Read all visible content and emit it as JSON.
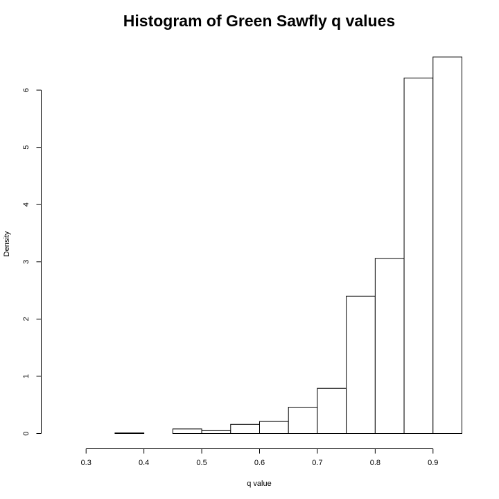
{
  "chart_data": {
    "type": "bar",
    "title": "Histogram of Green Sawfly q values",
    "xlabel": "q value",
    "ylabel": "Density",
    "xlim": [
      0.25,
      0.95
    ],
    "ylim": [
      0,
      6.6
    ],
    "x_ticks": [
      "0.3",
      "0.4",
      "0.5",
      "0.6",
      "0.7",
      "0.8",
      "0.9"
    ],
    "y_ticks": [
      "0",
      "1",
      "2",
      "3",
      "4",
      "5",
      "6"
    ],
    "bins": [
      {
        "start": 0.25,
        "end": 0.3,
        "value": 0.0
      },
      {
        "start": 0.3,
        "end": 0.35,
        "value": 0.0
      },
      {
        "start": 0.35,
        "end": 0.4,
        "value": 0.01
      },
      {
        "start": 0.4,
        "end": 0.45,
        "value": 0.0
      },
      {
        "start": 0.45,
        "end": 0.5,
        "value": 0.08
      },
      {
        "start": 0.5,
        "end": 0.55,
        "value": 0.05
      },
      {
        "start": 0.55,
        "end": 0.6,
        "value": 0.16
      },
      {
        "start": 0.6,
        "end": 0.65,
        "value": 0.21
      },
      {
        "start": 0.65,
        "end": 0.7,
        "value": 0.46
      },
      {
        "start": 0.7,
        "end": 0.75,
        "value": 0.79
      },
      {
        "start": 0.75,
        "end": 0.8,
        "value": 2.4
      },
      {
        "start": 0.8,
        "end": 0.85,
        "value": 3.06
      },
      {
        "start": 0.85,
        "end": 0.9,
        "value": 6.21
      },
      {
        "start": 0.9,
        "end": 0.95,
        "value": 6.58
      }
    ],
    "grid": false,
    "legend": "none",
    "bar_fill": "#ffffff",
    "bar_stroke": "#000000"
  }
}
